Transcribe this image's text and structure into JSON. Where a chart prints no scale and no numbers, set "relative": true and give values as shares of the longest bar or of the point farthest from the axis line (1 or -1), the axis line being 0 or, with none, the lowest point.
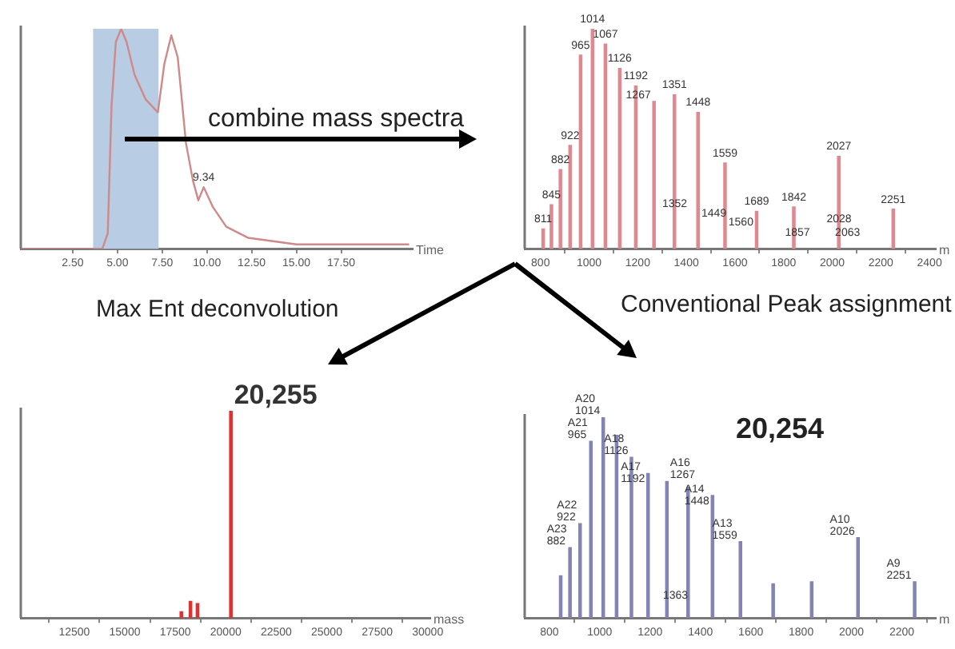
{
  "chart_data": [
    {
      "type": "line",
      "xlabel": "Time",
      "relative": true,
      "color": "#d08888",
      "x": [
        -0.4,
        4.16,
        4.46,
        4.67,
        4.91,
        5.21,
        5.51,
        5.96,
        6.57,
        7.26,
        7.62,
        8.01,
        8.37,
        8.83,
        9.22,
        9.52,
        9.82,
        10.33,
        11.08,
        12.29,
        15.0,
        21.3
      ],
      "values": [
        0,
        0,
        0.07,
        0.65,
        0.94,
        1.0,
        0.94,
        0.79,
        0.68,
        0.62,
        0.84,
        0.97,
        0.87,
        0.48,
        0.31,
        0.22,
        0.28,
        0.19,
        0.1,
        0.05,
        0.02,
        0.02
      ],
      "xlim": [
        -0.4,
        21.5
      ],
      "xticks": [
        {
          "value": 2.5,
          "label": "2.50"
        },
        {
          "value": 5,
          "label": "5.00"
        },
        {
          "value": 7.5,
          "label": "7.50"
        },
        {
          "value": 10,
          "label": "10.00"
        },
        {
          "value": 12.5,
          "label": "12.50"
        },
        {
          "value": 15,
          "label": "15.00"
        },
        {
          "value": 17.5,
          "label": "17.50"
        }
      ],
      "bands": [
        {
          "axis": "x",
          "from": 3.64,
          "to": 7.3,
          "color": "#b8cce4"
        }
      ],
      "annotations": [
        {
          "text": "9.34",
          "x": 9.82,
          "y": 0.28
        },
        "combine mass spectra"
      ]
    },
    {
      "type": "bar",
      "xlabel": "m",
      "relative": true,
      "color": "#e08890",
      "x": [
        811,
        845,
        882,
        922,
        965,
        1014,
        1067,
        1126,
        1192,
        1267,
        1351,
        1448,
        1559,
        1689,
        1842,
        2027,
        2251
      ],
      "values": [
        0.09,
        0.2,
        0.36,
        0.47,
        0.88,
        1.0,
        0.93,
        0.82,
        0.74,
        0.67,
        0.7,
        0.62,
        0.39,
        0.17,
        0.19,
        0.42,
        0.18
      ],
      "xlim": [
        735,
        2426
      ],
      "xticks": [
        800,
        1000,
        1200,
        1400,
        1600,
        1800,
        2000,
        2200,
        2400
      ],
      "annotations": [
        {
          "text": "1014",
          "x": 1014,
          "y": 1.0
        },
        {
          "text": "1067",
          "x": 1067,
          "y": 0.93
        },
        {
          "text": "965",
          "x": 965,
          "y": 0.88
        },
        {
          "text": "1126",
          "x": 1126,
          "y": 0.82
        },
        {
          "text": "1192",
          "x": 1192,
          "y": 0.74
        },
        {
          "text": "1351",
          "x": 1351,
          "y": 0.7
        },
        {
          "text": "1267",
          "x": 1267,
          "y": 0.67
        },
        {
          "text": "1448",
          "x": 1448,
          "y": 0.62
        },
        {
          "text": "922",
          "x": 922,
          "y": 0.47
        },
        {
          "text": "2027",
          "x": 2027,
          "y": 0.42
        },
        {
          "text": "1559",
          "x": 1559,
          "y": 0.39
        },
        {
          "text": "882",
          "x": 882,
          "y": 0.36
        },
        {
          "text": "845",
          "x": 845,
          "y": 0.2
        },
        {
          "text": "1842",
          "x": 1842,
          "y": 0.19
        },
        {
          "text": "2251",
          "x": 2251,
          "y": 0.18
        },
        {
          "text": "1689",
          "x": 1689,
          "y": 0.17
        },
        {
          "text": "811",
          "x": 811,
          "y": 0.09
        },
        {
          "text": "1352",
          "x": 1352,
          "y": 0.16
        },
        {
          "text": "1449",
          "x": 1449,
          "y": 0.13
        },
        {
          "text": "1560",
          "x": 1560,
          "y": 0.09
        },
        {
          "text": "1857",
          "x": 1857,
          "y": 0.03
        },
        {
          "text": "2028",
          "x": 2028,
          "y": 0.09
        },
        {
          "text": "2063",
          "x": 2063,
          "y": 0.03
        }
      ]
    },
    {
      "type": "bar",
      "title": "Max Ent deconvolution",
      "xlabel": "mass",
      "relative": true,
      "color": "#e03030",
      "x": [
        17800,
        18254,
        18600,
        20255
      ],
      "values": [
        0.03,
        0.08,
        0.07,
        1.0
      ],
      "xlim": [
        9850,
        30130
      ],
      "xticks": [
        12500,
        15000,
        17500,
        20000,
        22500,
        25000,
        27500,
        30000
      ],
      "annotations": [
        {
          "text": "20,255",
          "x": 20255,
          "y": 1.0
        }
      ]
    },
    {
      "type": "bar",
      "title": "Conventional Peak assignment",
      "xlabel": "m",
      "relative": true,
      "color": "#8484b4",
      "x": [
        845,
        882,
        922,
        965,
        1014,
        1067,
        1126,
        1192,
        1267,
        1351,
        1448,
        1559,
        1689,
        1842,
        2026,
        2251
      ],
      "values": [
        0.21,
        0.35,
        0.47,
        0.88,
        1.0,
        0.91,
        0.8,
        0.72,
        0.68,
        0.65,
        0.61,
        0.38,
        0.17,
        0.18,
        0.4,
        0.18
      ],
      "xlim": [
        702,
        2335
      ],
      "xticks": [
        800,
        1000,
        1200,
        1400,
        1600,
        1800,
        2000,
        2200
      ],
      "annotations": [
        "20,254",
        {
          "text": "A20 1014",
          "x": 1014,
          "y": 1.0
        },
        {
          "text": "A21 965",
          "x": 965,
          "y": 0.88
        },
        {
          "text": "A18 1126",
          "x": 1126,
          "y": 0.8
        },
        {
          "text": "A17 1192",
          "x": 1192,
          "y": 0.72
        },
        {
          "text": "A16 1267",
          "x": 1267,
          "y": 0.68
        },
        {
          "text": "A14 1448",
          "x": 1448,
          "y": 0.61
        },
        {
          "text": "A22 922",
          "x": 922,
          "y": 0.47
        },
        {
          "text": "A10 2026",
          "x": 2026,
          "y": 0.4
        },
        {
          "text": "A13 1559",
          "x": 1559,
          "y": 0.38
        },
        {
          "text": "A23 882",
          "x": 882,
          "y": 0.35
        },
        {
          "text": "A9 2251",
          "x": 2251,
          "y": 0.18
        },
        {
          "text": "1363",
          "x": 1363,
          "y": 0.08
        }
      ]
    }
  ]
}
